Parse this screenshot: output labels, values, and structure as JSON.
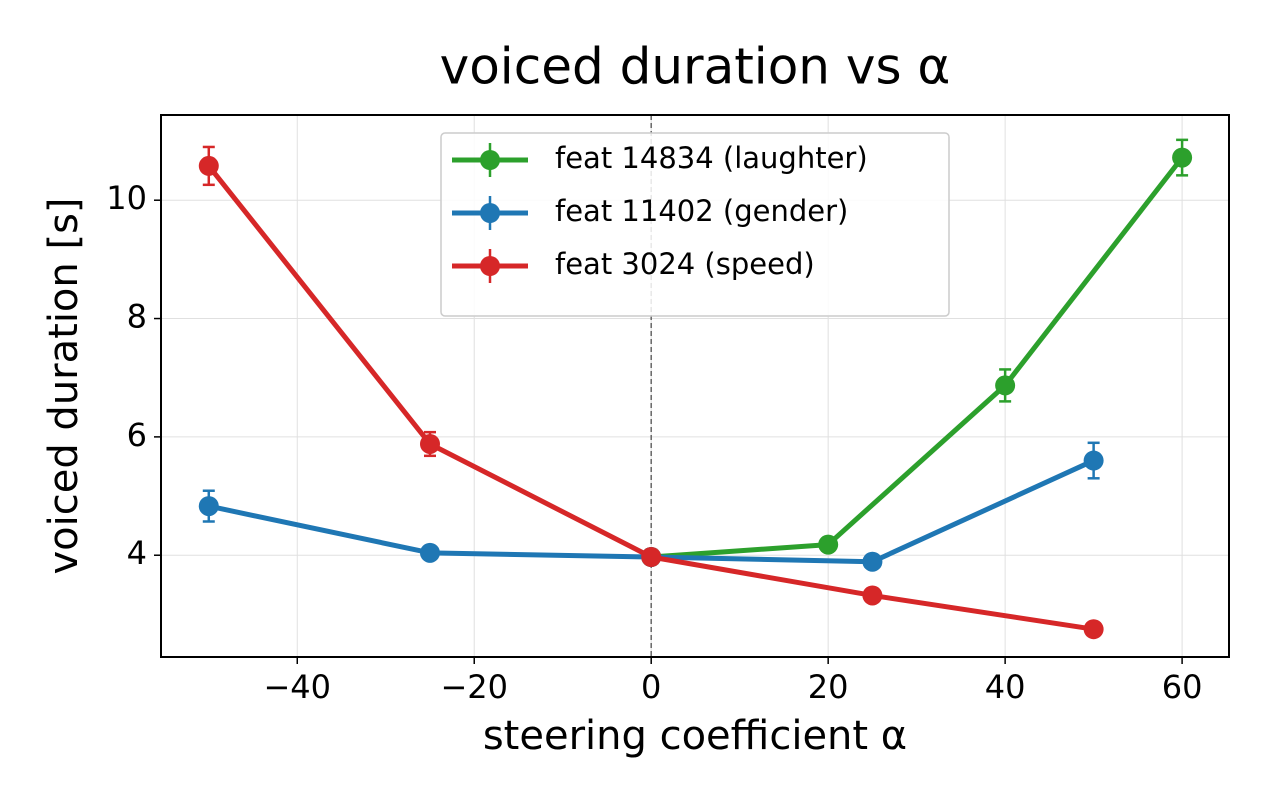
{
  "chart_data": {
    "type": "errorbar-line",
    "title": "voiced duration vs α",
    "x_label": "steering coefficient α",
    "y_label": "voiced duration [s]",
    "xlim": [
      -55.4,
      65.3
    ],
    "ylim": [
      2.28,
      11.44
    ],
    "xticks": [
      {
        "value": -40,
        "label": "−40"
      },
      {
        "value": -20,
        "label": "−20"
      },
      0,
      20,
      40,
      60
    ],
    "yticks": [
      4,
      6,
      8,
      10
    ],
    "grid": true,
    "legend": "upper center",
    "vline": 0,
    "series": [
      {
        "name": "feat 14834 (laughter)",
        "color": "#2ca02c",
        "x": [
          0,
          20,
          40,
          60
        ],
        "values": [
          3.97,
          4.18,
          6.87,
          10.72
        ],
        "errors": [
          0.05,
          0.05,
          0.27,
          0.3
        ]
      },
      {
        "name": "feat 11402 (gender)",
        "color": "#1f77b4",
        "x": [
          -50,
          -25,
          0,
          25,
          50
        ],
        "values": [
          4.83,
          4.04,
          3.97,
          3.89,
          5.6
        ],
        "errors": [
          0.26,
          0.05,
          0.05,
          0.05,
          0.3
        ]
      },
      {
        "name": "feat 3024 (speed)",
        "color": "#d62728",
        "x": [
          -50,
          -25,
          0,
          25,
          50
        ],
        "values": [
          10.58,
          5.88,
          3.97,
          3.32,
          2.75
        ],
        "errors": [
          0.32,
          0.2,
          0.04,
          0.04,
          0.04
        ]
      }
    ]
  }
}
